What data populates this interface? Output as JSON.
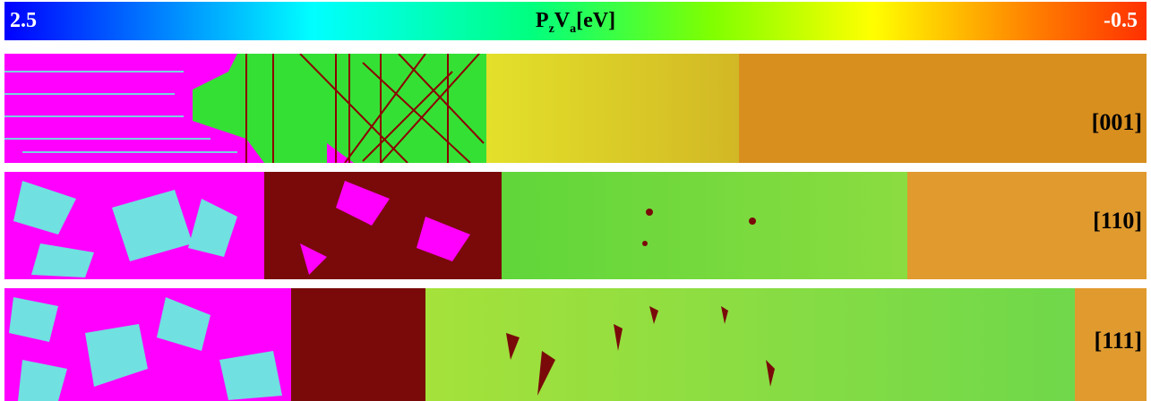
{
  "colorbar": {
    "max_label": "2.5",
    "min_label": "-0.5",
    "title_main_P": "P",
    "title_sub_z": "z",
    "title_main_V": "V",
    "title_sub_a": "a",
    "title_unit": "[eV]",
    "gradient_colors": [
      "#0000ff",
      "#00ffff",
      "#00ff80",
      "#80ff00",
      "#ffff00",
      "#ff8000",
      "#ff3000"
    ]
  },
  "panels": [
    {
      "label": "[001]",
      "colors": {
        "defect": "#ff00ff",
        "twin": "#00ff00",
        "dislocation": "#8b0000",
        "mid": "#d4d820",
        "far": "#d98f1e"
      }
    },
    {
      "label": "[110]",
      "colors": {
        "defect": "#ff00ff",
        "twin": "#70e0e0",
        "dislocation": "#7a0a0a",
        "mid": "#7bd93a",
        "far": "#e09a2e"
      }
    },
    {
      "label": "[111]",
      "colors": {
        "defect": "#ff00ff",
        "twin": "#70e0e0",
        "dislocation": "#7a0a0a",
        "mid": "#9ee03a",
        "far": "#e09a2e"
      }
    }
  ]
}
